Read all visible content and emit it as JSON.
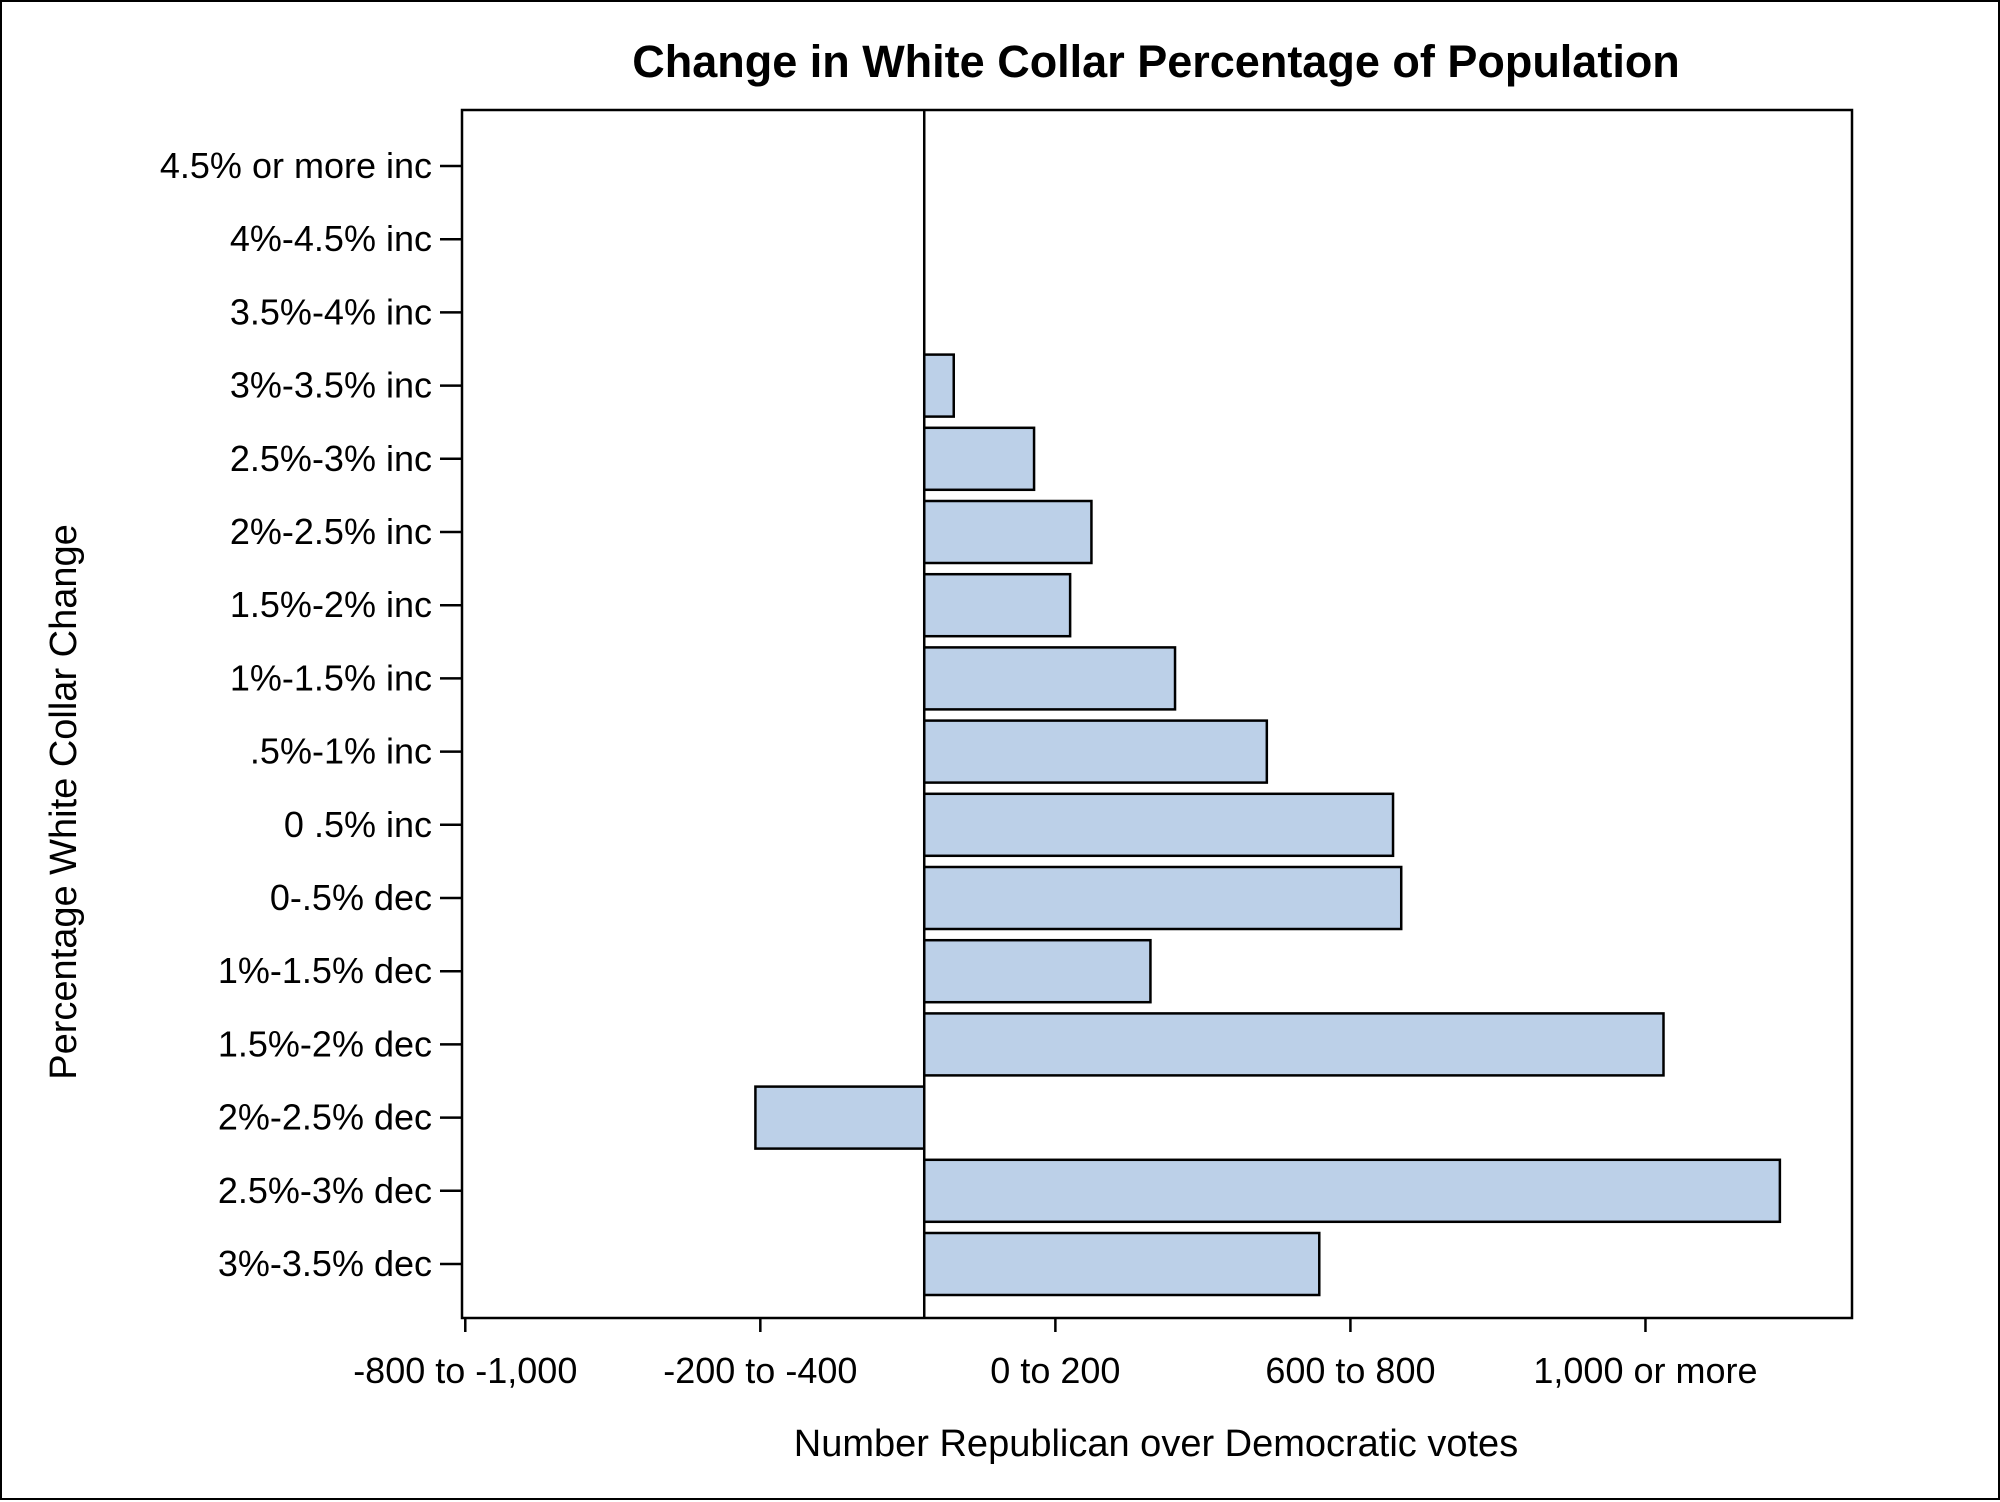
{
  "chart_data": {
    "type": "bar",
    "orientation": "horizontal",
    "title": "Change in White Collar Percentage of Population",
    "xlabel": "Number Republican over Democratic votes",
    "ylabel": "Percentage White Collar Change",
    "x_tick_labels": [
      "-800 to -1,000",
      "-200 to -400",
      "0 to 200",
      "600 to 800",
      "1,000 or more"
    ],
    "x_tick_values": [
      -2.8,
      -1.0,
      0.8,
      2.6,
      4.4
    ],
    "xlim": [
      -2.82,
      5.66
    ],
    "categories": [
      "4.5% or more inc",
      "4%-4.5% inc",
      "3.5%-4% inc",
      "3%-3.5% inc",
      "2.5%-3% inc",
      "2%-2.5% inc",
      "1.5%-2% inc",
      "1%-1.5% inc",
      ".5%-1% inc",
      "0 .5% inc",
      "0-.5% dec",
      "1%-1.5% dec",
      "1.5%-2% dec",
      "2%-2.5% dec",
      "2.5%-3% dec",
      "3%-3.5% dec"
    ],
    "values": [
      null,
      null,
      null,
      0.18,
      0.67,
      1.02,
      0.89,
      1.53,
      2.09,
      2.86,
      2.91,
      1.38,
      4.51,
      -1.03,
      5.22,
      2.41
    ],
    "grid": false,
    "legend": "none",
    "colors": {
      "bar_fill": "#bcd0e8",
      "bar_stroke": "#000000"
    }
  }
}
